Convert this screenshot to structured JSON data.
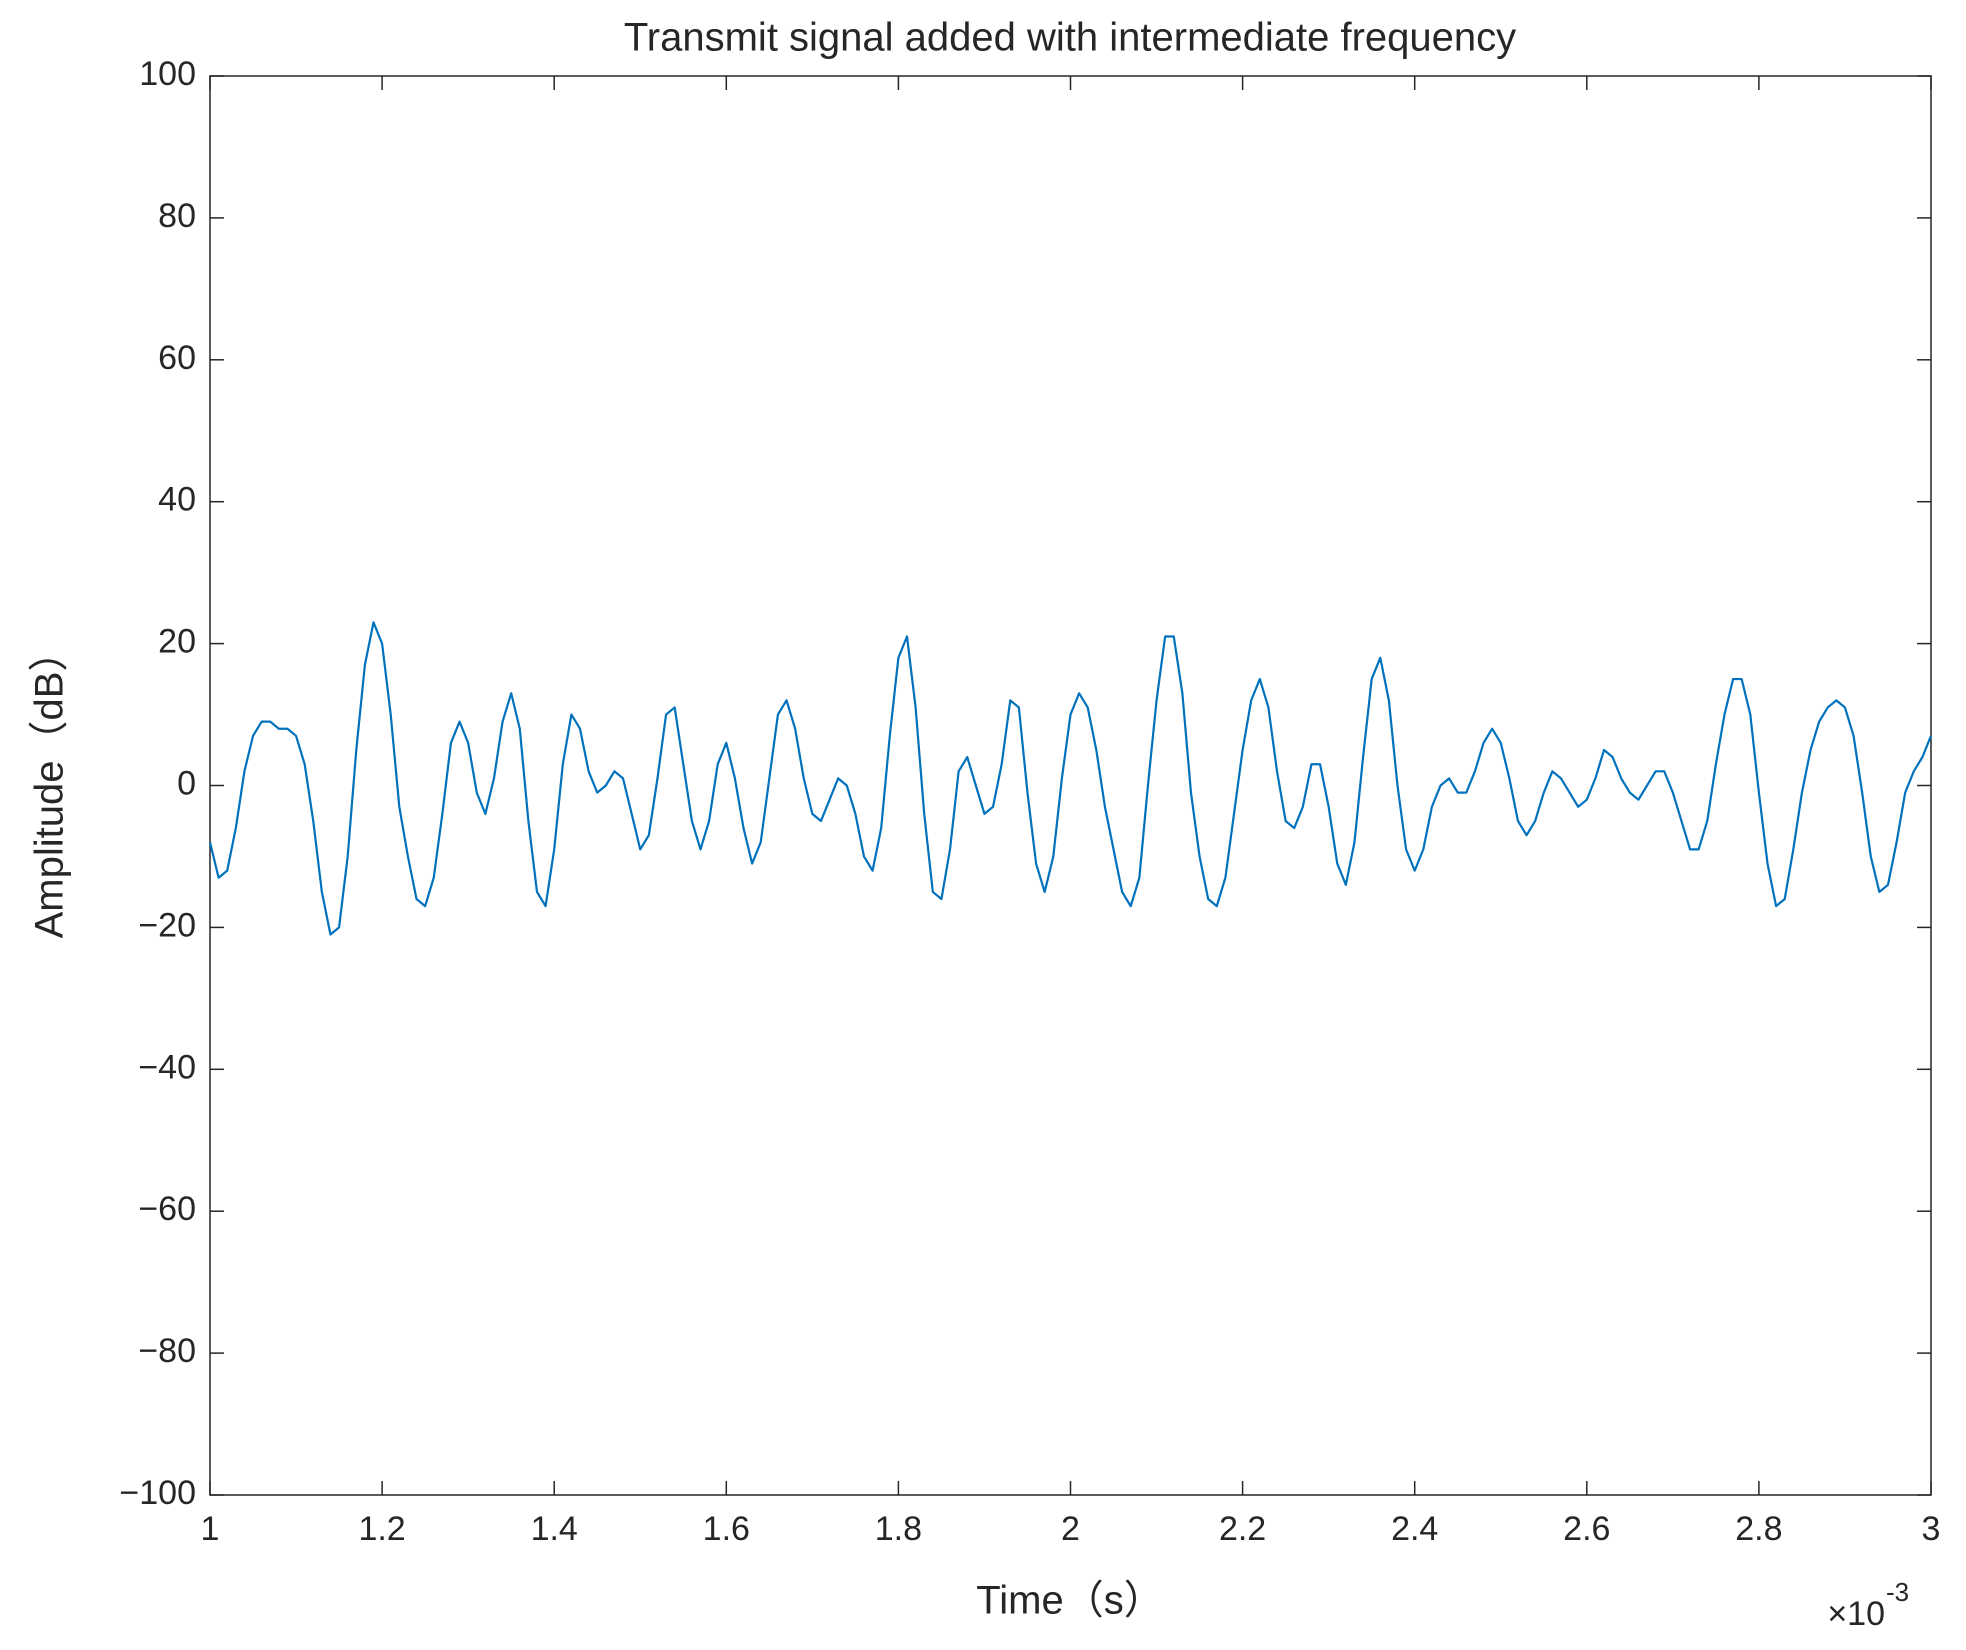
{
  "chart_data": {
    "type": "line",
    "title": "Transmit signal added with intermediate frequency",
    "xlabel": "Time（s）",
    "ylabel": "Amplitude（dB）",
    "x_multiplier": {
      "base": "×10",
      "exponent": "-3"
    },
    "x": [
      1,
      1.01,
      1.02,
      1.03,
      1.04,
      1.05,
      1.06,
      1.07,
      1.08,
      1.09,
      1.1,
      1.11,
      1.12,
      1.13,
      1.14,
      1.15,
      1.16,
      1.17,
      1.18,
      1.19,
      1.2,
      1.21,
      1.22,
      1.23,
      1.24,
      1.25,
      1.26,
      1.27,
      1.28,
      1.29,
      1.3,
      1.31,
      1.32,
      1.33,
      1.34,
      1.35,
      1.36,
      1.37,
      1.38,
      1.39,
      1.4,
      1.41,
      1.42,
      1.43,
      1.44,
      1.45,
      1.46,
      1.47,
      1.48,
      1.49,
      1.5,
      1.51,
      1.52,
      1.53,
      1.54,
      1.55,
      1.56,
      1.57,
      1.58,
      1.59,
      1.6,
      1.61,
      1.62,
      1.63,
      1.64,
      1.65,
      1.66,
      1.67,
      1.68,
      1.69,
      1.7,
      1.71,
      1.72,
      1.73,
      1.74,
      1.75,
      1.76,
      1.77,
      1.78,
      1.79,
      1.8,
      1.81,
      1.82,
      1.83,
      1.84,
      1.85,
      1.86,
      1.87,
      1.88,
      1.89,
      1.9,
      1.91,
      1.92,
      1.93,
      1.94,
      1.95,
      1.96,
      1.97,
      1.98,
      1.99,
      2,
      2.01,
      2.02,
      2.03,
      2.04,
      2.05,
      2.06,
      2.07,
      2.08,
      2.09,
      2.1,
      2.11,
      2.12,
      2.13,
      2.14,
      2.15,
      2.16,
      2.17,
      2.18,
      2.19,
      2.2,
      2.21,
      2.22,
      2.23,
      2.24,
      2.25,
      2.26,
      2.27,
      2.28,
      2.29,
      2.3,
      2.31,
      2.32,
      2.33,
      2.34,
      2.35,
      2.36,
      2.37,
      2.38,
      2.39,
      2.4,
      2.41,
      2.42,
      2.43,
      2.44,
      2.45,
      2.46,
      2.47,
      2.48,
      2.49,
      2.5,
      2.51,
      2.52,
      2.53,
      2.54,
      2.55,
      2.56,
      2.57,
      2.58,
      2.59,
      2.6,
      2.61,
      2.62,
      2.63,
      2.64,
      2.65,
      2.66,
      2.67,
      2.68,
      2.69,
      2.7,
      2.71,
      2.72,
      2.73,
      2.74,
      2.75,
      2.76,
      2.77,
      2.78,
      2.79,
      2.8,
      2.81,
      2.82,
      2.83,
      2.84,
      2.85,
      2.86,
      2.87,
      2.88,
      2.89,
      2.9,
      2.91,
      2.92,
      2.93,
      2.94,
      2.95,
      2.96,
      2.97,
      2.98,
      2.99,
      3
    ],
    "series": [
      {
        "color": "#0072bd",
        "values": [
          -8,
          -13,
          -12,
          -6,
          2,
          7,
          9,
          9,
          8,
          8,
          7,
          3,
          -5,
          -15,
          -21,
          -20,
          -10,
          5,
          17,
          23,
          20,
          10,
          -3,
          -10,
          -16,
          -17,
          -13,
          -4,
          6,
          9,
          6,
          -1,
          -4,
          1,
          9,
          13,
          8,
          -5,
          -15,
          -17,
          -9,
          3,
          10,
          8,
          2,
          -1,
          0,
          2,
          1,
          -4,
          -9,
          -7,
          1,
          10,
          11,
          3,
          -5,
          -9,
          -5,
          3,
          6,
          1,
          -6,
          -11,
          -8,
          1,
          10,
          12,
          8,
          1,
          -4,
          -5,
          -2,
          1,
          0,
          -4,
          -10,
          -12,
          -6,
          7,
          18,
          21,
          11,
          -4,
          -15,
          -16,
          -9,
          2,
          4,
          0,
          -4,
          -3,
          3,
          12,
          11,
          -1,
          -11,
          -15,
          -10,
          1,
          10,
          13,
          11,
          5,
          -3,
          -9,
          -15,
          -17,
          -13,
          0,
          12,
          21,
          21,
          13,
          -1,
          -10,
          -16,
          -17,
          -13,
          -4,
          5,
          12,
          15,
          11,
          2,
          -5,
          -6,
          -3,
          3,
          3,
          -3,
          -11,
          -14,
          -8,
          4,
          15,
          18,
          12,
          0,
          -9,
          -12,
          -9,
          -3,
          0,
          1,
          -1,
          -1,
          2,
          6,
          8,
          6,
          1,
          -5,
          -7,
          -5,
          -1,
          2,
          1,
          -1,
          -3,
          -2,
          1,
          5,
          4,
          1,
          -1,
          -2,
          0,
          2,
          2,
          -1,
          -5,
          -9,
          -9,
          -5,
          3,
          10,
          15,
          15,
          10,
          -1,
          -11,
          -17,
          -16,
          -9,
          -1,
          5,
          9,
          11,
          12,
          11,
          7,
          -1,
          -10,
          -15,
          -14,
          -8,
          -1,
          2,
          4,
          7
        ]
      }
    ],
    "xlim": [
      1,
      3
    ],
    "xticks": [
      1,
      1.2,
      1.4,
      1.6,
      1.8,
      2,
      2.2,
      2.4,
      2.6,
      2.8,
      3
    ],
    "ylim": [
      -100,
      100
    ],
    "yticks": [
      {
        "value": -100,
        "label": "−100"
      },
      {
        "value": -80,
        "label": "−80"
      },
      {
        "value": -60,
        "label": "−60"
      },
      {
        "value": -40,
        "label": "−40"
      },
      {
        "value": -20,
        "label": "−20"
      },
      0,
      20,
      40,
      60,
      80,
      100
    ],
    "grid": false
  }
}
